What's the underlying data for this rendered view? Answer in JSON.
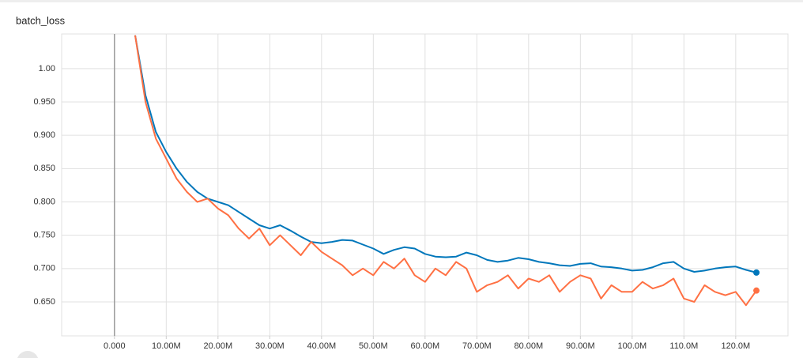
{
  "chart_data": {
    "type": "line",
    "title": "batch_loss",
    "x": [
      4000000,
      6000000,
      8000000,
      10000000,
      12000000,
      14000000,
      16000000,
      18000000,
      20000000,
      22000000,
      24000000,
      26000000,
      28000000,
      30000000,
      32000000,
      34000000,
      36000000,
      38000000,
      40000000,
      42000000,
      44000000,
      46000000,
      48000000,
      50000000,
      52000000,
      54000000,
      56000000,
      58000000,
      60000000,
      62000000,
      64000000,
      66000000,
      68000000,
      70000000,
      72000000,
      74000000,
      76000000,
      78000000,
      80000000,
      82000000,
      84000000,
      86000000,
      88000000,
      90000000,
      92000000,
      94000000,
      96000000,
      98000000,
      100000000,
      102000000,
      104000000,
      106000000,
      108000000,
      110000000,
      112000000,
      114000000,
      116000000,
      118000000,
      120000000,
      122000000,
      124000000
    ],
    "series": [
      {
        "color": "#0077bb",
        "values": [
          1.05,
          0.96,
          0.905,
          0.875,
          0.85,
          0.83,
          0.815,
          0.805,
          0.8,
          0.795,
          0.785,
          0.775,
          0.765,
          0.76,
          0.765,
          0.757,
          0.748,
          0.74,
          0.738,
          0.74,
          0.743,
          0.742,
          0.736,
          0.73,
          0.722,
          0.728,
          0.732,
          0.73,
          0.722,
          0.718,
          0.717,
          0.718,
          0.724,
          0.72,
          0.713,
          0.71,
          0.712,
          0.716,
          0.714,
          0.71,
          0.708,
          0.705,
          0.704,
          0.707,
          0.708,
          0.703,
          0.702,
          0.7,
          0.697,
          0.698,
          0.702,
          0.708,
          0.71,
          0.7,
          0.695,
          0.697,
          0.7,
          0.702,
          0.703,
          0.698,
          0.694
        ]
      },
      {
        "color": "#ff7043",
        "values": [
          1.05,
          0.95,
          0.895,
          0.865,
          0.835,
          0.815,
          0.8,
          0.805,
          0.79,
          0.78,
          0.76,
          0.745,
          0.76,
          0.735,
          0.75,
          0.735,
          0.72,
          0.74,
          0.725,
          0.715,
          0.705,
          0.69,
          0.7,
          0.69,
          0.71,
          0.7,
          0.715,
          0.69,
          0.68,
          0.7,
          0.69,
          0.71,
          0.7,
          0.665,
          0.675,
          0.68,
          0.69,
          0.67,
          0.685,
          0.68,
          0.69,
          0.665,
          0.68,
          0.69,
          0.685,
          0.655,
          0.675,
          0.665,
          0.665,
          0.68,
          0.67,
          0.675,
          0.685,
          0.655,
          0.65,
          0.675,
          0.665,
          0.66,
          0.665,
          0.645,
          0.667
        ]
      }
    ],
    "xlim": [
      -10200000,
      130100000
    ],
    "ylim": [
      0.599,
      1.052
    ],
    "xticks": [
      {
        "value": 0,
        "label": "0.000"
      },
      {
        "value": 10000000,
        "label": "10.00M"
      },
      {
        "value": 20000000,
        "label": "20.00M"
      },
      {
        "value": 30000000,
        "label": "30.00M"
      },
      {
        "value": 40000000,
        "label": "40.00M"
      },
      {
        "value": 50000000,
        "label": "50.00M"
      },
      {
        "value": 60000000,
        "label": "60.00M"
      },
      {
        "value": 70000000,
        "label": "70.00M"
      },
      {
        "value": 80000000,
        "label": "80.00M"
      },
      {
        "value": 90000000,
        "label": "90.00M"
      },
      {
        "value": 100000000,
        "label": "100.0M"
      },
      {
        "value": 110000000,
        "label": "110.0M"
      },
      {
        "value": 120000000,
        "label": "120.0M"
      }
    ],
    "yticks": [
      {
        "value": 0.65,
        "label": "0.650"
      },
      {
        "value": 0.7,
        "label": "0.700"
      },
      {
        "value": 0.75,
        "label": "0.750"
      },
      {
        "value": 0.8,
        "label": "0.800"
      },
      {
        "value": 0.85,
        "label": "0.850"
      },
      {
        "value": 0.9,
        "label": "0.900"
      },
      {
        "value": 0.95,
        "label": "0.950"
      },
      {
        "value": 1,
        "label": "1.00"
      }
    ],
    "grid": true
  }
}
